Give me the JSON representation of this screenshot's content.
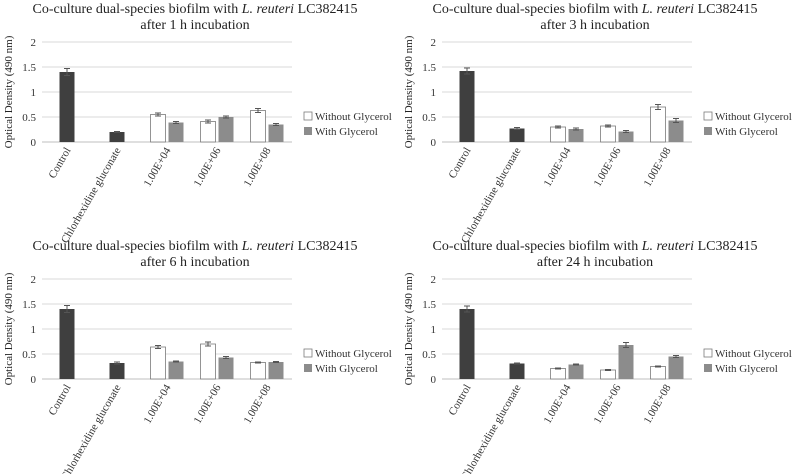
{
  "colors": {
    "control": "#3f3f3f",
    "without": "#ffffff",
    "with": "#8c8c8c",
    "grid": "#d9d9d9",
    "axis": "#bfbfbf"
  },
  "legend": {
    "without": "Without Glycerol",
    "with": "With Glycerol"
  },
  "chart_data": [
    {
      "type": "bar",
      "title_prefix": "Co-culture dual-species  biofilm with ",
      "title_species": "L. reuteri",
      "title_strain": " LC382415",
      "title_line2": "after 1 h incubation",
      "ylabel": "Optical Density (490 nm)",
      "ylim": [
        0,
        2
      ],
      "yticks": [
        "0",
        "0.5",
        "1",
        "1.5",
        "2"
      ],
      "categories": [
        "Control",
        "Chlorhexidine gluconate",
        "1.00E+04",
        "1.00E+06",
        "1.00E+08"
      ],
      "series": [
        {
          "name": "Without Glycerol",
          "values": [
            null,
            null,
            0.55,
            0.41,
            0.63
          ],
          "errors": [
            null,
            null,
            0.03,
            0.03,
            0.04
          ]
        },
        {
          "name": "With Glycerol",
          "values": [
            null,
            null,
            0.39,
            0.5,
            0.35
          ],
          "errors": [
            null,
            null,
            0.02,
            0.02,
            0.02
          ]
        }
      ],
      "controls": [
        {
          "category": "Control",
          "value": 1.4,
          "error": 0.07
        },
        {
          "category": "Chlorhexidine gluconate",
          "value": 0.2,
          "error": 0.01
        }
      ]
    },
    {
      "type": "bar",
      "title_prefix": "Co-culture dual-species  biofilm with ",
      "title_species": "L. reuteri",
      "title_strain": " LC382415",
      "title_line2": "after 3 h incubation",
      "ylabel": "Optical Density (490 nm)",
      "ylim": [
        0,
        2
      ],
      "yticks": [
        "0",
        "0.5",
        "1",
        "1.5",
        "2"
      ],
      "categories": [
        "Control",
        "Chlorhexidine gluconate",
        "1.00E+04",
        "1.00E+06",
        "1.00E+08"
      ],
      "series": [
        {
          "name": "Without Glycerol",
          "values": [
            null,
            null,
            0.3,
            0.32,
            0.7
          ],
          "errors": [
            null,
            null,
            0.02,
            0.02,
            0.05
          ]
        },
        {
          "name": "With Glycerol",
          "values": [
            null,
            null,
            0.26,
            0.21,
            0.43
          ],
          "errors": [
            null,
            null,
            0.02,
            0.02,
            0.04
          ]
        }
      ],
      "controls": [
        {
          "category": "Control",
          "value": 1.42,
          "error": 0.06
        },
        {
          "category": "Chlorhexidine gluconate",
          "value": 0.27,
          "error": 0.02
        }
      ]
    },
    {
      "type": "bar",
      "title_prefix": "Co-culture dual-species  biofilm with ",
      "title_species": "L. reuteri",
      "title_strain": " LC382415",
      "title_line2": "after 6 h incubation",
      "ylabel": "Optical Density (490 nm)",
      "ylim": [
        0,
        2
      ],
      "yticks": [
        "0",
        "0.5",
        "1",
        "1.5",
        "2"
      ],
      "categories": [
        "Control",
        "Chlorhexidine gluconate",
        "1.00E+04",
        "1.00E+06",
        "1.00E+08"
      ],
      "series": [
        {
          "name": "Without Glycerol",
          "values": [
            null,
            null,
            0.64,
            0.7,
            0.33
          ],
          "errors": [
            null,
            null,
            0.03,
            0.04,
            0.01
          ]
        },
        {
          "name": "With Glycerol",
          "values": [
            null,
            null,
            0.35,
            0.43,
            0.34
          ],
          "errors": [
            null,
            null,
            0.01,
            0.02,
            0.01
          ]
        }
      ],
      "controls": [
        {
          "category": "Control",
          "value": 1.4,
          "error": 0.07
        },
        {
          "category": "Chlorhexidine gluconate",
          "value": 0.32,
          "error": 0.02
        }
      ]
    },
    {
      "type": "bar",
      "title_prefix": "Co-culture dual-species  biofilm with ",
      "title_species": "L. reuteri",
      "title_strain": " LC382415",
      "title_line2": "after 24 h incubation",
      "ylabel": "Optical Density (490 nm)",
      "ylim": [
        0,
        2
      ],
      "yticks": [
        "0",
        "0.5",
        "1",
        "1.5",
        "2"
      ],
      "categories": [
        "Control",
        "Chlorhexidine gluconate",
        "1.00E+04",
        "1.00E+06",
        "1.00E+08"
      ],
      "series": [
        {
          "name": "Without Glycerol",
          "values": [
            null,
            null,
            0.21,
            0.18,
            0.25
          ],
          "errors": [
            null,
            null,
            0.01,
            0.01,
            0.01
          ]
        },
        {
          "name": "With Glycerol",
          "values": [
            null,
            null,
            0.29,
            0.68,
            0.45
          ],
          "errors": [
            null,
            null,
            0.01,
            0.05,
            0.02
          ]
        }
      ],
      "controls": [
        {
          "category": "Control",
          "value": 1.4,
          "error": 0.06
        },
        {
          "category": "Chlorhexidine gluconate",
          "value": 0.31,
          "error": 0.01
        }
      ]
    }
  ]
}
